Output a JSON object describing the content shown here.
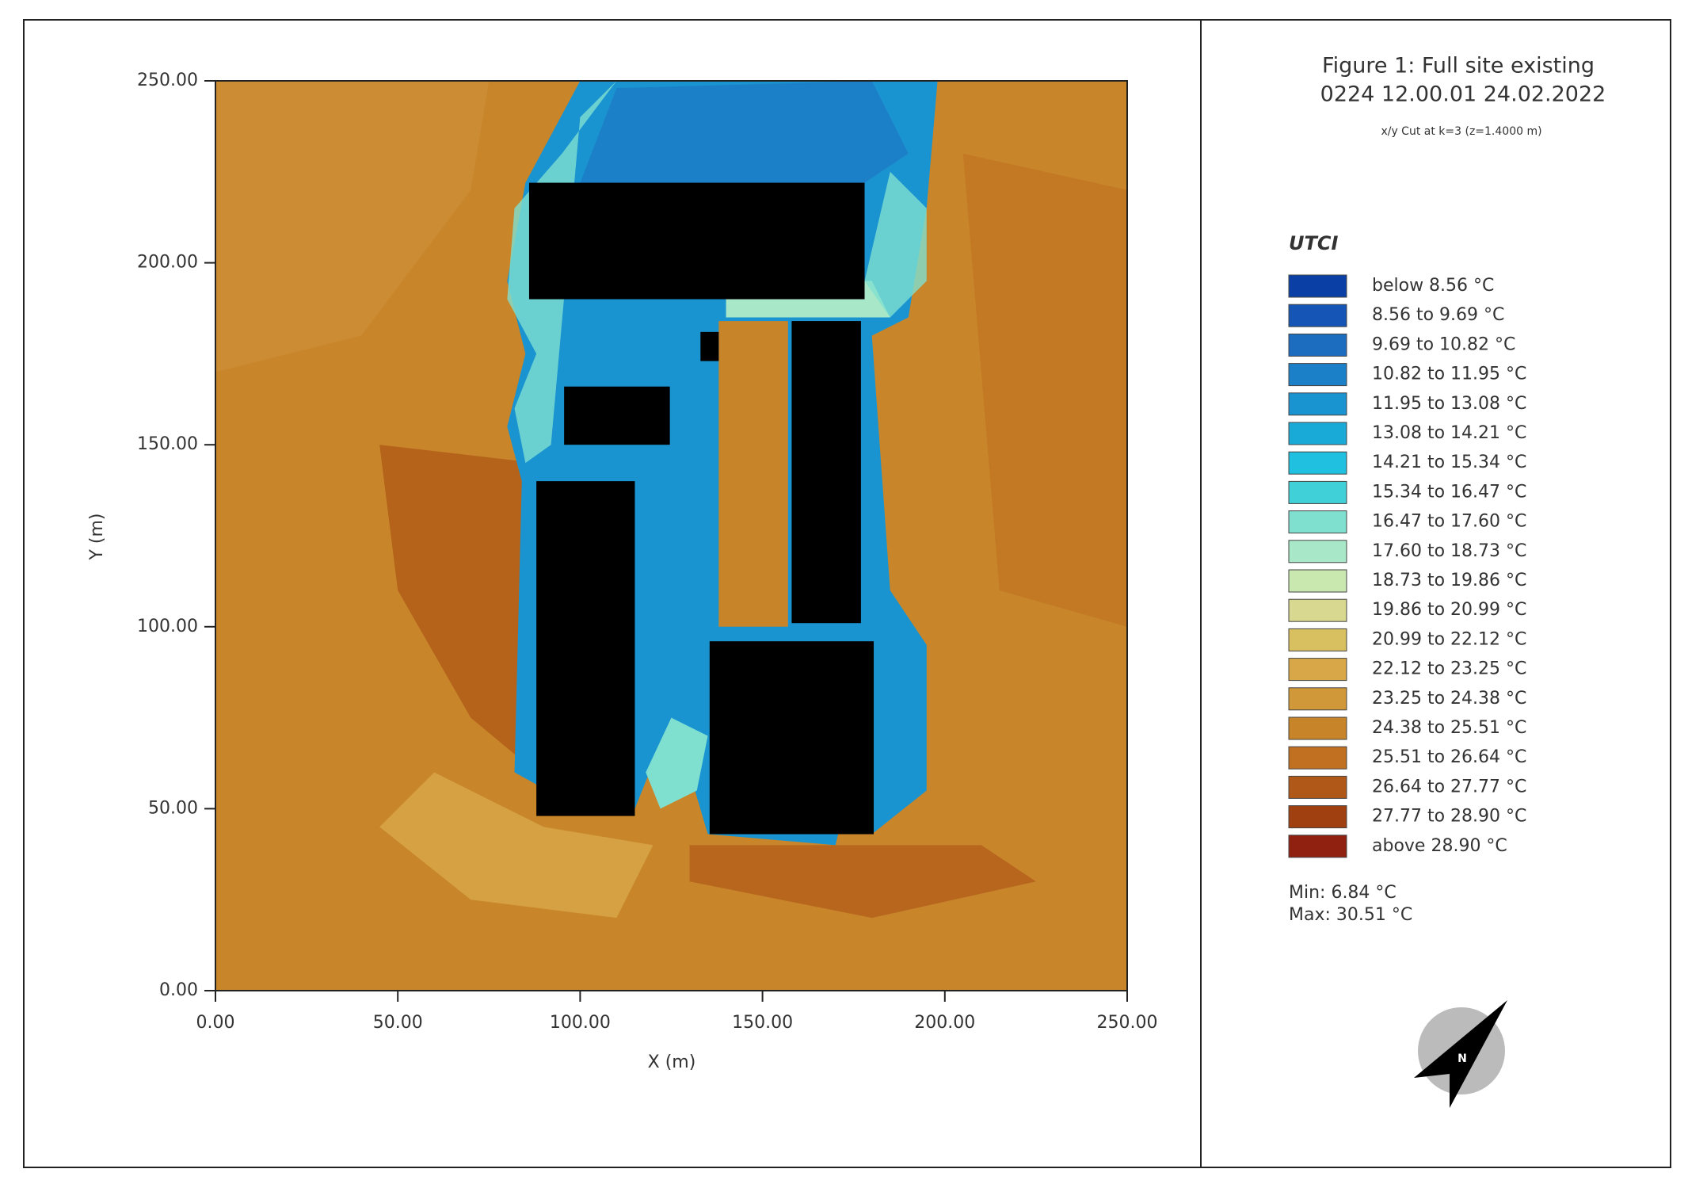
{
  "chart_data": {
    "type": "heatmap",
    "title": "Figure 1: Full site existing",
    "subtitle": "0224 12.00.01 24.02.2022",
    "cut_label": "x/y Cut at k=3 (z=1.4000 m)",
    "x_label": "X (m)",
    "y_label": "Y (m)",
    "xlim": [
      0,
      250
    ],
    "ylim": [
      0,
      250
    ],
    "xticks": [
      {
        "value": 0,
        "label": "0.00"
      },
      {
        "value": 50,
        "label": "50.00"
      },
      {
        "value": 100,
        "label": "100.00"
      },
      {
        "value": 150,
        "label": "150.00"
      },
      {
        "value": 200,
        "label": "200.00"
      },
      {
        "value": 250,
        "label": "250.00"
      }
    ],
    "yticks": [
      {
        "value": 0,
        "label": "0.00"
      },
      {
        "value": 50,
        "label": "50.00"
      },
      {
        "value": 100,
        "label": "100.00"
      },
      {
        "value": 150,
        "label": "150.00"
      },
      {
        "value": 200,
        "label": "200.00"
      },
      {
        "value": 250,
        "label": "250.00"
      }
    ],
    "legend_title": "UTCI",
    "legend": [
      {
        "label": "below 8.56 °C",
        "color": "#0a3fa6"
      },
      {
        "label": "8.56 to 9.69 °C",
        "color": "#1555b5"
      },
      {
        "label": "9.69 to 10.82 °C",
        "color": "#1c6cc0"
      },
      {
        "label": "10.82 to 11.95 °C",
        "color": "#1c80c8"
      },
      {
        "label": "11.95 to 13.08 °C",
        "color": "#1a94d0"
      },
      {
        "label": "13.08 to 14.21 °C",
        "color": "#1aaad8"
      },
      {
        "label": "14.21 to 15.34 °C",
        "color": "#20c0e0"
      },
      {
        "label": "15.34 to 16.47 °C",
        "color": "#40d0d8"
      },
      {
        "label": "16.47 to 17.60 °C",
        "color": "#80e0d0"
      },
      {
        "label": "17.60 to 18.73 °C",
        "color": "#a8e8c8"
      },
      {
        "label": "18.73 to 19.86 °C",
        "color": "#c8e8b0"
      },
      {
        "label": "19.86 to 20.99 °C",
        "color": "#d8d890"
      },
      {
        "label": "20.99 to 22.12 °C",
        "color": "#d8c060"
      },
      {
        "label": "22.12 to 23.25 °C",
        "color": "#d8a848"
      },
      {
        "label": "23.25 to 24.38 °C",
        "color": "#d09838"
      },
      {
        "label": "24.38 to 25.51 °C",
        "color": "#c88428"
      },
      {
        "label": "25.51 to 26.64 °C",
        "color": "#c07020"
      },
      {
        "label": "26.64 to 27.77 °C",
        "color": "#b05818"
      },
      {
        "label": "27.77 to 28.90 °C",
        "color": "#a04010"
      },
      {
        "label": "above 28.90 °C",
        "color": "#902010"
      }
    ],
    "min_label": "Min: 6.84 °C",
    "max_label": "Max: 30.51 °C",
    "north_label": "N"
  }
}
